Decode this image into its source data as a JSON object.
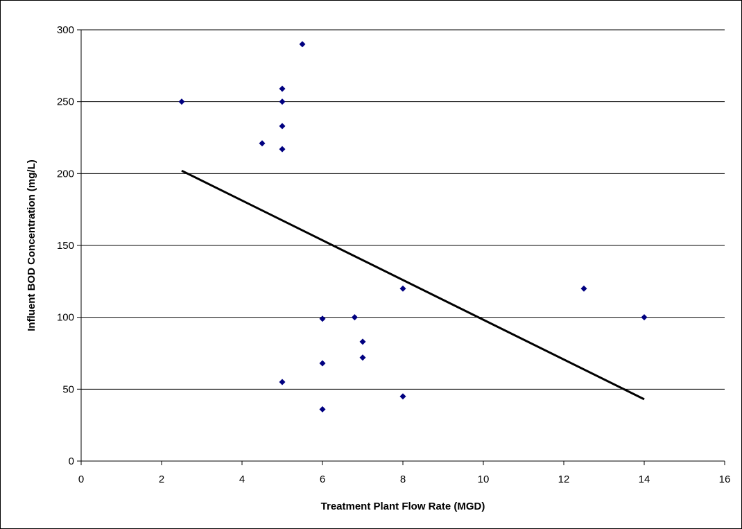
{
  "chart_data": {
    "type": "scatter",
    "title": "",
    "xlabel": "Treatment Plant Flow Rate (MGD)",
    "ylabel": "Influent BOD Concentration (mg/L)",
    "xlim": [
      0,
      16
    ],
    "ylim": [
      0,
      300
    ],
    "x_ticks": [
      "0",
      "2",
      "4",
      "6",
      "8",
      "10",
      "12",
      "14",
      "16"
    ],
    "y_ticks": [
      "0",
      "50",
      "100",
      "150",
      "200",
      "250",
      "300"
    ],
    "grid": "horizontal",
    "legend": "none",
    "marker_color": "#000080",
    "trendline_color": "#000000",
    "series": [
      {
        "points": [
          {
            "x": 2.5,
            "y": 250
          },
          {
            "x": 4.5,
            "y": 221
          },
          {
            "x": 5,
            "y": 259
          },
          {
            "x": 5,
            "y": 250
          },
          {
            "x": 5,
            "y": 233
          },
          {
            "x": 5,
            "y": 217
          },
          {
            "x": 5,
            "y": 55
          },
          {
            "x": 5.5,
            "y": 290
          },
          {
            "x": 6,
            "y": 99
          },
          {
            "x": 6,
            "y": 68
          },
          {
            "x": 6,
            "y": 36
          },
          {
            "x": 6.8,
            "y": 100
          },
          {
            "x": 7,
            "y": 83
          },
          {
            "x": 7,
            "y": 72
          },
          {
            "x": 8,
            "y": 120
          },
          {
            "x": 8,
            "y": 45
          },
          {
            "x": 12.5,
            "y": 120
          },
          {
            "x": 14,
            "y": 100
          }
        ]
      }
    ],
    "trendline": {
      "x": [
        2.5,
        14
      ],
      "y": [
        202,
        43
      ]
    }
  }
}
